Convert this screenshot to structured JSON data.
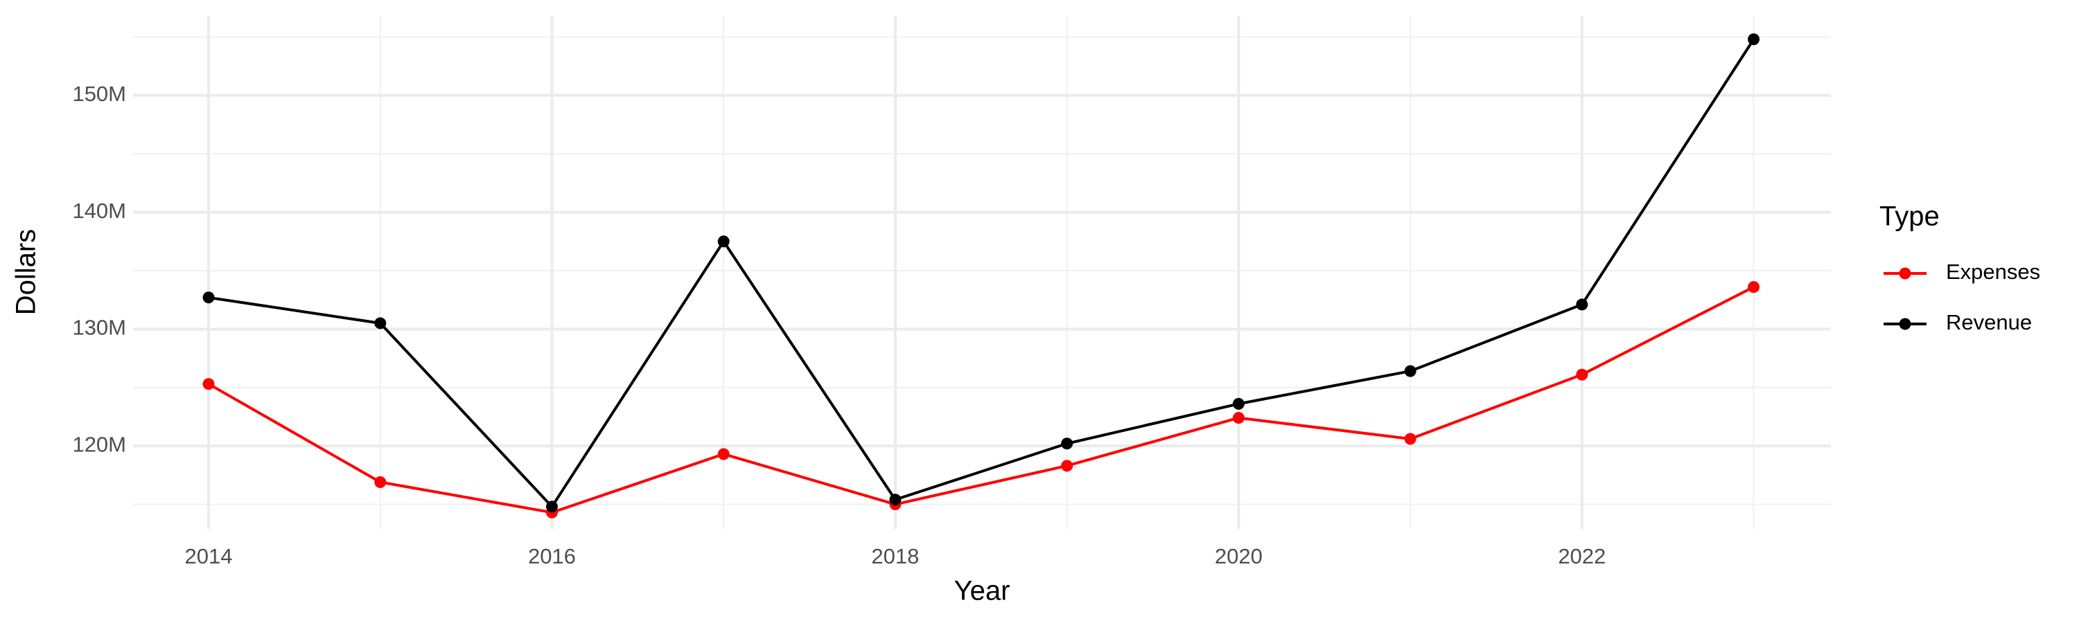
{
  "chart_data": {
    "type": "line",
    "x_label": "Year",
    "y_label": "Dollars",
    "legend_title": "Type",
    "x": [
      2014,
      2015,
      2016,
      2017,
      2018,
      2019,
      2020,
      2021,
      2022,
      2023
    ],
    "series": [
      {
        "name": "Expenses",
        "color": "#ff0000",
        "values": [
          125300000,
          116900000,
          114300000,
          119300000,
          115000000,
          118300000,
          122400000,
          120600000,
          126100000,
          133600000
        ]
      },
      {
        "name": "Revenue",
        "color": "#000000",
        "values": [
          132700000,
          130500000,
          114800000,
          137500000,
          115400000,
          120200000,
          123600000,
          126400000,
          132100000,
          154800000
        ]
      }
    ],
    "xlim": [
      2013.56,
      2023.45
    ],
    "xticks": [
      2014,
      2016,
      2018,
      2020,
      2022
    ],
    "ylim": [
      112900000,
      156800000
    ],
    "yticks": [
      {
        "value": 120000000,
        "label": "120M"
      },
      {
        "value": 130000000,
        "label": "130M"
      },
      {
        "value": 140000000,
        "label": "140M"
      },
      {
        "value": 150000000,
        "label": "150M"
      }
    ],
    "grid": true,
    "legend_position": "right"
  }
}
